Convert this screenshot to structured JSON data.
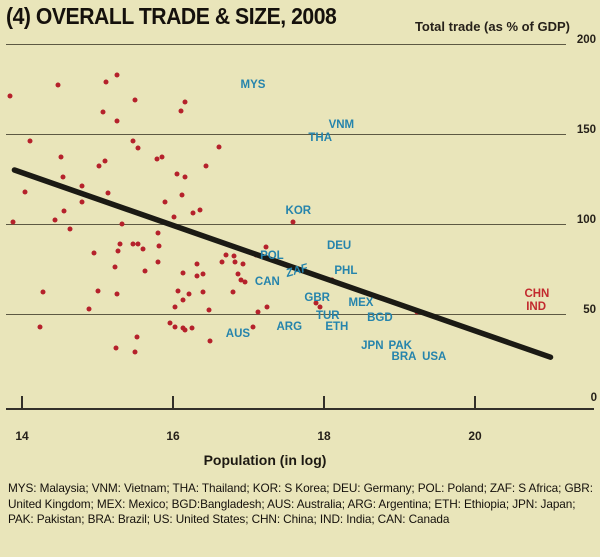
{
  "header": {
    "title": "(4) OVERALL TRADE & SIZE, 2008",
    "y_axis_title": "Total trade (as % of GDP)"
  },
  "colors": {
    "background": "#e9e5ba",
    "dot": "#b5212b",
    "country_label_blue": "#2584ac",
    "country_label_red": "#c22a2e",
    "trend_line": "#1b1a14",
    "gridline": "#5d5943",
    "text": "#15110c"
  },
  "chart_data": {
    "type": "scatter",
    "title": "(4) OVERALL TRADE & SIZE, 2008",
    "xlabel": "Population (in log)",
    "ylabel": "Total trade (as % of GDP)",
    "xlim": [
      13.8,
      21.6
    ],
    "ylim": [
      0,
      200
    ],
    "x_ticks": [
      14,
      16,
      18,
      20
    ],
    "y_ticks": [
      200,
      150,
      100,
      50
    ],
    "y_zero_label": "0",
    "grid": "horizontal",
    "legend_position": "none",
    "points": [
      [
        13.84,
        171
      ],
      [
        14.48,
        177
      ],
      [
        15.11,
        179
      ],
      [
        15.26,
        183
      ],
      [
        15.5,
        169
      ],
      [
        16.16,
        168
      ],
      [
        16.11,
        163
      ],
      [
        15.07,
        162
      ],
      [
        15.26,
        157
      ],
      [
        14.11,
        146
      ],
      [
        15.47,
        146
      ],
      [
        15.54,
        142
      ],
      [
        16.61,
        143
      ],
      [
        15.85,
        137
      ],
      [
        15.79,
        136
      ],
      [
        14.52,
        137
      ],
      [
        15.1,
        135
      ],
      [
        15.02,
        132
      ],
      [
        16.44,
        132
      ],
      [
        16.05,
        128
      ],
      [
        16.16,
        126
      ],
      [
        14.54,
        126
      ],
      [
        14.79,
        121
      ],
      [
        14.04,
        118
      ],
      [
        15.14,
        117
      ],
      [
        16.12,
        116
      ],
      [
        15.89,
        112
      ],
      [
        14.79,
        112
      ],
      [
        14.56,
        107
      ],
      [
        13.88,
        101
      ],
      [
        14.44,
        102
      ],
      [
        14.64,
        97
      ],
      [
        15.32,
        100
      ],
      [
        16.36,
        108
      ],
      [
        16.26,
        106
      ],
      [
        16.01,
        104
      ],
      [
        17.59,
        101
      ],
      [
        14.95,
        84
      ],
      [
        15.3,
        89
      ],
      [
        15.47,
        89
      ],
      [
        15.54,
        89
      ],
      [
        15.6,
        86
      ],
      [
        15.27,
        85
      ],
      [
        15.8,
        95
      ],
      [
        15.81,
        88
      ],
      [
        15.8,
        79
      ],
      [
        16.32,
        78
      ],
      [
        16.65,
        79
      ],
      [
        16.82,
        79
      ],
      [
        16.7,
        83
      ],
      [
        17.23,
        87
      ],
      [
        17.1,
        83
      ],
      [
        16.81,
        82
      ],
      [
        16.93,
        78
      ],
      [
        15.23,
        76
      ],
      [
        15.63,
        74
      ],
      [
        16.13,
        73
      ],
      [
        16.32,
        71
      ],
      [
        16.4,
        72
      ],
      [
        16.86,
        72
      ],
      [
        16.9,
        69
      ],
      [
        16.95,
        68
      ],
      [
        18.11,
        69
      ],
      [
        14.28,
        62
      ],
      [
        15.01,
        63
      ],
      [
        15.26,
        61
      ],
      [
        16.07,
        63
      ],
      [
        16.21,
        61
      ],
      [
        16.4,
        62
      ],
      [
        16.79,
        62
      ],
      [
        16.13,
        58
      ],
      [
        16.03,
        54
      ],
      [
        14.89,
        53
      ],
      [
        16.48,
        52
      ],
      [
        17.13,
        51
      ],
      [
        17.25,
        54
      ],
      [
        17.89,
        56
      ],
      [
        17.95,
        54
      ],
      [
        19.23,
        51
      ],
      [
        14.24,
        43
      ],
      [
        15.96,
        45
      ],
      [
        16.03,
        43
      ],
      [
        16.13,
        42
      ],
      [
        16.25,
        42
      ],
      [
        17.06,
        43
      ],
      [
        16.16,
        41
      ],
      [
        16.49,
        35
      ],
      [
        15.52,
        37
      ],
      [
        15.25,
        31
      ],
      [
        15.5,
        29
      ]
    ],
    "labeled_points": [
      {
        "code": "MYS",
        "x": 17.06,
        "y": 177,
        "color": "blue"
      },
      {
        "code": "VNM",
        "x": 18.23,
        "y": 155,
        "color": "blue"
      },
      {
        "code": "THA",
        "x": 17.95,
        "y": 148,
        "color": "blue"
      },
      {
        "code": "KOR",
        "x": 17.66,
        "y": 107,
        "color": "blue"
      },
      {
        "code": "DEU",
        "x": 18.2,
        "y": 88,
        "color": "blue"
      },
      {
        "code": "POL",
        "x": 17.31,
        "y": 82,
        "color": "blue"
      },
      {
        "code": "ZAF",
        "x": 17.64,
        "y": 74,
        "color": "blue"
      },
      {
        "code": "CAN",
        "x": 17.25,
        "y": 68,
        "color": "blue"
      },
      {
        "code": "PHL",
        "x": 18.29,
        "y": 74,
        "color": "blue"
      },
      {
        "code": "GBR",
        "x": 17.91,
        "y": 59,
        "color": "blue"
      },
      {
        "code": "MEX",
        "x": 18.49,
        "y": 56,
        "color": "blue"
      },
      {
        "code": "TUR",
        "x": 18.05,
        "y": 49,
        "color": "blue"
      },
      {
        "code": "BGD",
        "x": 18.74,
        "y": 48,
        "color": "blue"
      },
      {
        "code": "ETH",
        "x": 18.17,
        "y": 43,
        "color": "blue"
      },
      {
        "code": "ARG",
        "x": 17.54,
        "y": 43,
        "color": "blue"
      },
      {
        "code": "AUS",
        "x": 16.86,
        "y": 39,
        "color": "blue"
      },
      {
        "code": "JPN",
        "x": 18.64,
        "y": 32,
        "color": "blue"
      },
      {
        "code": "PAK",
        "x": 19.01,
        "y": 32,
        "color": "blue"
      },
      {
        "code": "BRA",
        "x": 19.06,
        "y": 26,
        "color": "blue"
      },
      {
        "code": "USA",
        "x": 19.46,
        "y": 26,
        "color": "blue"
      },
      {
        "code": "CHN",
        "x": 20.82,
        "y": 61,
        "color": "red"
      },
      {
        "code": "IND",
        "x": 20.81,
        "y": 54,
        "color": "red"
      }
    ],
    "trend_line": {
      "x1": 13.9,
      "y1": 130,
      "x2": 21.0,
      "y2": 26
    }
  },
  "footer": {
    "legend_text": "MYS: Malaysia; VNM: Vietnam; THA: Thailand; KOR: S Korea; DEU: Germany; POL: Poland; ZAF: S Africa; GBR: United Kingdom; MEX: Mexico; BGD:Bangladesh; AUS: Australia; ARG: Argentina; ETH: Ethiopia; JPN: Japan; PAK: Pakistan; BRA: Brazil; US: United States; CHN: China; IND: India; CAN: Canada"
  }
}
